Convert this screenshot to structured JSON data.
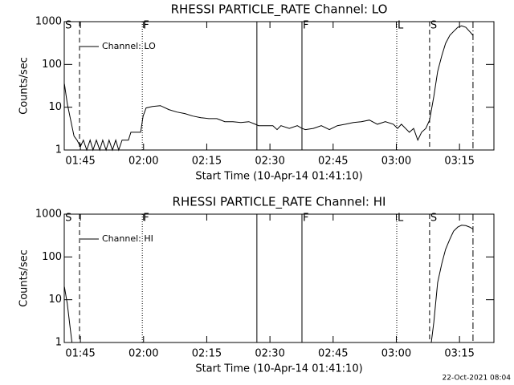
{
  "footer": "22-Oct-2021 08:04",
  "chart_data": [
    {
      "type": "line",
      "title": "RHESSI PARTICLE_RATE Channel: LO",
      "x_label": "Start Time (10-Apr-14 01:41:10)",
      "y_label": "Counts/sec",
      "log_y": true,
      "legend": "upper left",
      "xlim": [
        101.17,
        203.17
      ],
      "ylim": [
        1,
        1000
      ],
      "xticks": [
        {
          "value": 105,
          "label": "01:45"
        },
        {
          "value": 120,
          "label": "02:00"
        },
        {
          "value": 135,
          "label": "02:15"
        },
        {
          "value": 150,
          "label": "02:30"
        },
        {
          "value": 165,
          "label": "02:45"
        },
        {
          "value": 180,
          "label": "03:00"
        },
        {
          "value": 195,
          "label": "03:15"
        }
      ],
      "yticks": [
        1,
        10,
        100,
        1000
      ],
      "vlines": [
        {
          "x": 104.8,
          "style": "dashed"
        },
        {
          "x": 119.7,
          "style": "dotted"
        },
        {
          "x": 146.9,
          "style": "solid"
        },
        {
          "x": 157.6,
          "style": "solid"
        },
        {
          "x": 180.1,
          "style": "dotted"
        },
        {
          "x": 187.9,
          "style": "dashed"
        },
        {
          "x": 198.2,
          "style": "dashdot"
        }
      ],
      "flags": [
        {
          "text": "S",
          "x": 101.2
        },
        {
          "text": "F",
          "x": 119.7
        },
        {
          "text": "F",
          "x": 157.6
        },
        {
          "text": "L",
          "x": 180.1
        },
        {
          "text": "S",
          "x": 187.9
        }
      ],
      "x": [
        101.2,
        101.9,
        102.7,
        103.5,
        104.2,
        105.0,
        105.7,
        106.5,
        107.3,
        108.0,
        108.8,
        109.6,
        110.3,
        111.1,
        111.8,
        112.6,
        113.4,
        114.1,
        114.9,
        116.4,
        117.0,
        118.3,
        119.3,
        119.9,
        120.6,
        122.1,
        124.0,
        126.0,
        127.9,
        129.8,
        131.7,
        133.6,
        135.5,
        137.4,
        139.3,
        141.2,
        143.1,
        145.0,
        146.5,
        147.3,
        150.7,
        151.7,
        152.6,
        154.6,
        156.5,
        157.6,
        158.4,
        160.3,
        162.2,
        164.1,
        166.0,
        167.9,
        169.8,
        171.7,
        173.6,
        175.5,
        177.4,
        179.3,
        180.3,
        181.2,
        183.1,
        184.1,
        185.1,
        186.0,
        187.0,
        187.9,
        188.9,
        189.8,
        190.8,
        191.7,
        192.7,
        193.6,
        194.6,
        195.5,
        196.5,
        197.4,
        198.2
      ],
      "series": [
        {
          "name": "Channel: LO",
          "color": "#000000",
          "values": [
            35,
            12,
            5,
            2.1,
            1.7,
            1.2,
            1.7,
            1,
            1.7,
            1,
            1.7,
            1,
            1.7,
            1,
            1.7,
            1,
            1.7,
            1,
            1.7,
            1.7,
            2.6,
            2.6,
            2.6,
            6.2,
            9.6,
            10.4,
            10.9,
            8.8,
            7.7,
            7.1,
            6.2,
            5.7,
            5.4,
            5.4,
            4.6,
            4.6,
            4.4,
            4.6,
            4.0,
            3.7,
            3.7,
            3.0,
            3.7,
            3.2,
            3.7,
            3.2,
            3.0,
            3.2,
            3.7,
            3.0,
            3.7,
            4.0,
            4.4,
            4.6,
            5.0,
            4.0,
            4.6,
            4.0,
            3.2,
            4.0,
            2.6,
            3.2,
            1.7,
            2.6,
            3.2,
            5.0,
            18,
            68,
            160,
            310,
            480,
            590,
            740,
            800,
            740,
            590,
            480
          ]
        }
      ]
    },
    {
      "type": "line",
      "title": "RHESSI PARTICLE_RATE Channel: HI",
      "x_label": "Start Time (10-Apr-14 01:41:10)",
      "y_label": "Counts/sec",
      "log_y": true,
      "legend": "upper left",
      "xlim": [
        101.17,
        203.17
      ],
      "ylim": [
        1,
        1000
      ],
      "xticks": [
        {
          "value": 105,
          "label": "01:45"
        },
        {
          "value": 120,
          "label": "02:00"
        },
        {
          "value": 135,
          "label": "02:15"
        },
        {
          "value": 150,
          "label": "02:30"
        },
        {
          "value": 165,
          "label": "02:45"
        },
        {
          "value": 180,
          "label": "03:00"
        },
        {
          "value": 195,
          "label": "03:15"
        }
      ],
      "yticks": [
        1,
        10,
        100,
        1000
      ],
      "vlines": [
        {
          "x": 104.8,
          "style": "dashed"
        },
        {
          "x": 119.7,
          "style": "dotted"
        },
        {
          "x": 146.9,
          "style": "solid"
        },
        {
          "x": 157.6,
          "style": "solid"
        },
        {
          "x": 180.1,
          "style": "dotted"
        },
        {
          "x": 187.9,
          "style": "dashed"
        },
        {
          "x": 198.2,
          "style": "dashdot"
        }
      ],
      "flags": [
        {
          "text": "S",
          "x": 101.2
        },
        {
          "text": "F",
          "x": 119.7
        },
        {
          "text": "F",
          "x": 157.6
        },
        {
          "text": "L",
          "x": 180.1
        },
        {
          "text": "S",
          "x": 187.9
        }
      ],
      "x": [
        101.2,
        101.9,
        102.5,
        103.0,
        145.0,
        188.3,
        188.9,
        189.8,
        190.8,
        191.7,
        192.7,
        193.6,
        194.6,
        195.5,
        196.5,
        197.4,
        198.2
      ],
      "series": [
        {
          "name": "Channel: HI",
          "color": "#000000",
          "values": [
            20,
            8,
            2.5,
            1,
            null,
            1,
            3,
            25,
            70,
            150,
            260,
            400,
            500,
            550,
            540,
            500,
            450
          ]
        }
      ]
    }
  ]
}
